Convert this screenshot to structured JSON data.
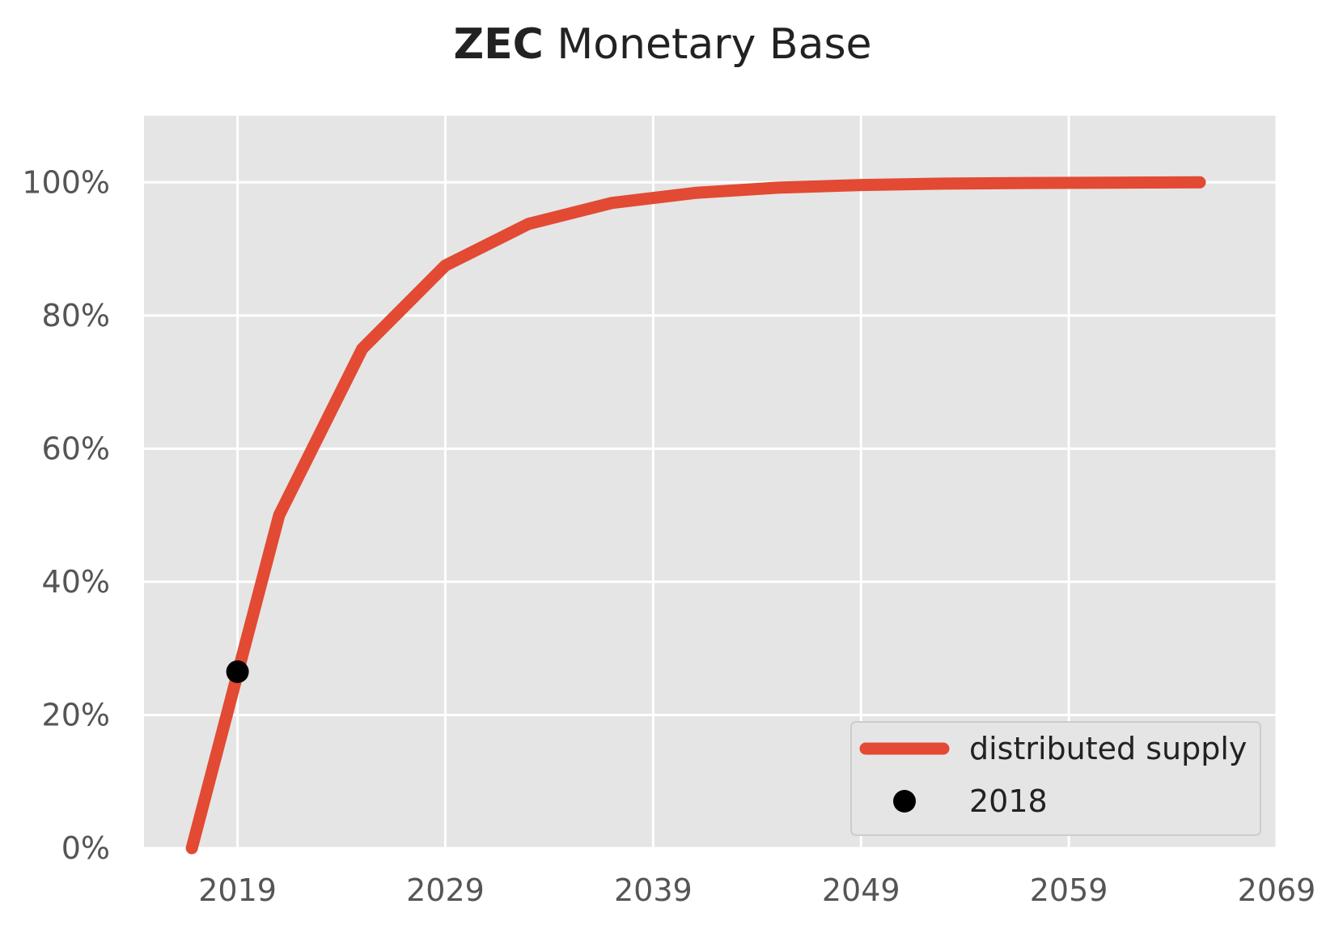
{
  "title": {
    "bold": "ZEC",
    "rest": " Monetary Base"
  },
  "colors": {
    "supply": "#e24a33",
    "marker": "#000000",
    "plot_bg": "#e5e5e5",
    "grid": "#ffffff"
  },
  "legend": {
    "position": "lower-right",
    "supply_label": "distributed supply",
    "marker_label": "2018"
  },
  "chart_data": {
    "type": "line",
    "title": "ZEC Monetary Base",
    "xlim": [
      2014.5,
      2069
    ],
    "ylim": [
      0,
      1.1
    ],
    "x_ticks": [
      2019,
      2029,
      2039,
      2049,
      2059,
      2069
    ],
    "x_tick_labels": [
      "2019",
      "2029",
      "2039",
      "2049",
      "2059",
      "2069"
    ],
    "y_ticks": [
      0,
      0.2,
      0.4,
      0.6,
      0.8,
      1.0
    ],
    "y_tick_labels": [
      "0%",
      "20%",
      "40%",
      "60%",
      "80%",
      "100%"
    ],
    "grid": true,
    "series": [
      {
        "name": "distributed supply",
        "x": [
          2016.8,
          2021,
          2025,
          2029,
          2033,
          2037,
          2041,
          2045,
          2049,
          2053,
          2057,
          2061,
          2065.3
        ],
        "y": [
          0.0,
          0.5,
          0.75,
          0.875,
          0.9375,
          0.969,
          0.984,
          0.992,
          0.996,
          0.998,
          0.999,
          0.9995,
          1.0
        ]
      }
    ],
    "points": [
      {
        "name": "2018",
        "x": 2019,
        "y": 0.265
      }
    ]
  }
}
